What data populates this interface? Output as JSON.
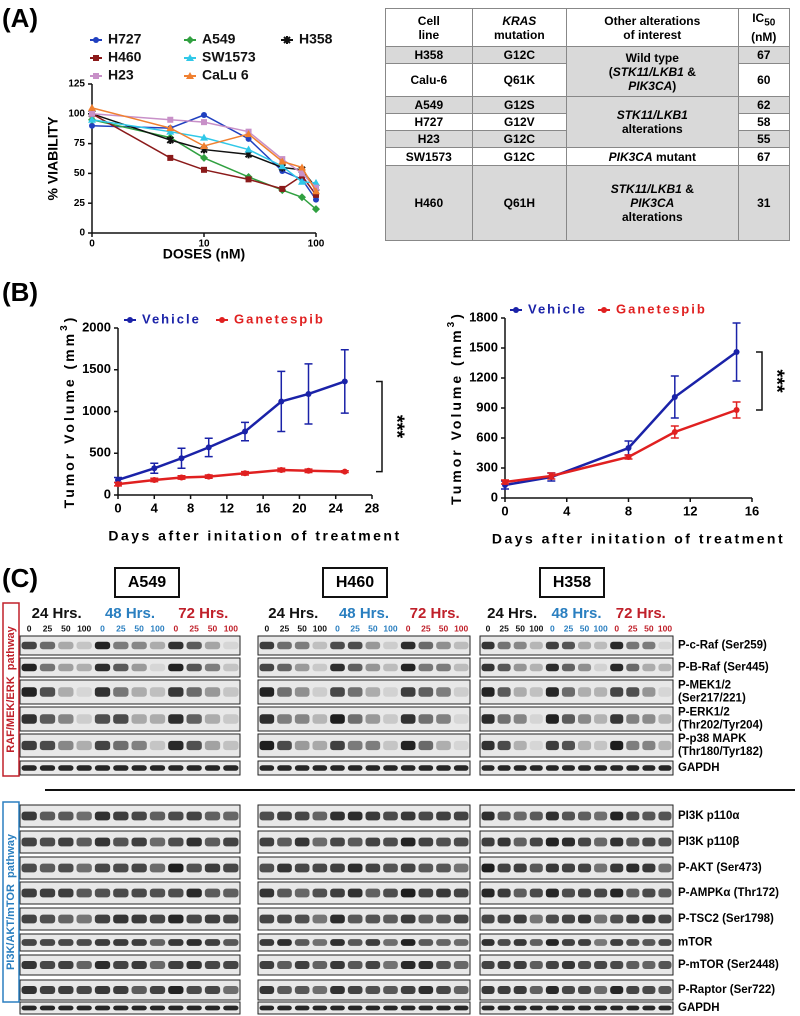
{
  "panel_labels": [
    "(A)",
    "(B)",
    "(C)"
  ],
  "chart_data": [
    {
      "type": "line",
      "x_label": "DOSES  (nM)",
      "y_label": "% VIABILITY",
      "xscale": "log",
      "x": [
        0,
        5,
        10,
        25,
        50,
        75,
        100
      ],
      "xlim": [
        0,
        100
      ],
      "xticks": [
        0,
        10,
        100
      ],
      "ylim": [
        0,
        125
      ],
      "yticks": [
        0,
        25,
        50,
        75,
        100,
        125
      ],
      "series": [
        {
          "name": "H727",
          "color": "#2040c0",
          "marker": "circle",
          "values": [
            90,
            88,
            99,
            79,
            52,
            45,
            28
          ]
        },
        {
          "name": "A549",
          "color": "#30a040",
          "marker": "diamond",
          "values": [
            95,
            80,
            63,
            47,
            36,
            30,
            20
          ]
        },
        {
          "name": "H358",
          "color": "#111111",
          "marker": "x",
          "values": [
            100,
            78,
            70,
            66,
            55,
            53,
            38
          ]
        },
        {
          "name": "H460",
          "color": "#8b1a1a",
          "marker": "square",
          "values": [
            100,
            63,
            53,
            45,
            37,
            48,
            32
          ]
        },
        {
          "name": "SW1573",
          "color": "#30c8e8",
          "marker": "triangle",
          "values": [
            95,
            85,
            80,
            70,
            56,
            43,
            42
          ]
        },
        {
          "name": "H23",
          "color": "#c890c8",
          "marker": "square",
          "values": [
            100,
            95,
            93,
            85,
            62,
            50,
            38
          ]
        },
        {
          "name": "CaLu 6",
          "color": "#f08030",
          "marker": "triangle",
          "values": [
            105,
            88,
            73,
            83,
            60,
            55,
            35
          ]
        }
      ]
    },
    {
      "type": "line",
      "x_label": "Days after initation of treatment",
      "y_label": [
        "Tumor Volume (mm",
        "3",
        ")"
      ],
      "x": [
        0,
        4,
        7,
        10,
        14,
        18,
        21,
        25
      ],
      "xlim": [
        0,
        28
      ],
      "xticks": [
        0,
        4,
        8,
        12,
        16,
        20,
        24,
        28
      ],
      "ylim": [
        0,
        2000
      ],
      "yticks": [
        0,
        500,
        1000,
        1500,
        2000
      ],
      "significance": "***",
      "series": [
        {
          "name": "Vehicle",
          "color": "#1a22a8",
          "marker": "circle",
          "values": [
            180,
            320,
            440,
            570,
            760,
            1120,
            1210,
            1360
          ],
          "errors": [
            30,
            60,
            120,
            110,
            110,
            360,
            360,
            380
          ]
        },
        {
          "name": "Ganetespib",
          "color": "#e02020",
          "marker": "circle",
          "values": [
            130,
            180,
            210,
            220,
            260,
            300,
            290,
            280
          ],
          "errors": [
            20,
            20,
            20,
            20,
            20,
            20,
            20,
            10
          ]
        }
      ]
    },
    {
      "type": "line",
      "x_label": "Days after initation of treatment",
      "y_label": [
        "Tumor Volume (mm",
        "3",
        ")"
      ],
      "x": [
        0,
        3,
        8,
        11,
        15
      ],
      "xlim": [
        0,
        16
      ],
      "xticks": [
        0,
        4,
        8,
        12,
        16
      ],
      "ylim": [
        0,
        1800
      ],
      "yticks": [
        0,
        300,
        600,
        900,
        1200,
        1500,
        1800
      ],
      "significance": "***",
      "series": [
        {
          "name": "Vehicle",
          "color": "#1a22a8",
          "marker": "circle",
          "values": [
            130,
            210,
            500,
            1010,
            1460
          ],
          "errors": [
            40,
            40,
            70,
            210,
            290
          ]
        },
        {
          "name": "Ganetespib",
          "color": "#e02020",
          "marker": "circle",
          "values": [
            160,
            220,
            410,
            660,
            880
          ],
          "errors": [
            20,
            30,
            20,
            60,
            80
          ]
        }
      ]
    }
  ],
  "table": {
    "header": [
      [
        "Cell",
        "line"
      ],
      [
        "KRAS",
        "mutation"
      ],
      [
        "Other alterations",
        "of interest"
      ],
      [
        "IC",
        "50",
        "(nM)"
      ]
    ],
    "rows": [
      [
        "H358",
        "G12C",
        67
      ],
      [
        "Calu-6",
        "Q61K",
        60
      ],
      [
        "A549",
        "G12S",
        62
      ],
      [
        "H727",
        "G12V",
        58
      ],
      [
        "H23",
        "G12C",
        55
      ],
      [
        "SW1573",
        "G12C",
        67
      ],
      [
        "H460",
        "Q61H",
        31
      ]
    ],
    "alterations": [
      [
        "Wild type",
        "(",
        "STK11/LKB1",
        "&",
        "PIK3CA",
        ")"
      ],
      [
        "STK11/LKB1",
        "alterations"
      ],
      [
        "PIK3CA",
        "mutant"
      ],
      [
        "STK11/LKB1",
        "&",
        "PIK3CA",
        "alterations"
      ]
    ]
  },
  "blots": {
    "cell_lines": [
      "A549",
      "H460",
      "H358"
    ],
    "times": [
      "24 Hrs.",
      "48 Hrs.",
      "72 Hrs."
    ],
    "doses": [
      "0",
      "25",
      "50",
      "100"
    ],
    "pathways": [
      "RAF/MEK/ERK  pathway",
      "PI3K/AKT/mTOR  pathway"
    ],
    "proteins": [
      [
        [
          "P-c-Raf (Ser259)"
        ],
        [
          "P-B-Raf (Ser445)"
        ],
        [
          "P-MEK1/2",
          "(Ser217/221)"
        ],
        [
          "P-ERK1/2",
          "(Thr202/Tyr204)"
        ],
        [
          "P-p38 MAPK",
          "(Thr180/Tyr182)"
        ],
        [
          "GAPDH"
        ]
      ],
      [
        [
          "PI3K p110α"
        ],
        [
          "PI3K p110β"
        ],
        [
          "P-AKT (Ser473)"
        ],
        [
          "P-AMPKα (Thr172)"
        ],
        [
          "P-TSC2 (Ser1798)"
        ],
        [
          "mTOR"
        ],
        [
          "P-mTOR (Ser2448)"
        ],
        [
          "P-Raptor (Ser722)"
        ],
        [
          "GAPDH"
        ]
      ]
    ]
  }
}
